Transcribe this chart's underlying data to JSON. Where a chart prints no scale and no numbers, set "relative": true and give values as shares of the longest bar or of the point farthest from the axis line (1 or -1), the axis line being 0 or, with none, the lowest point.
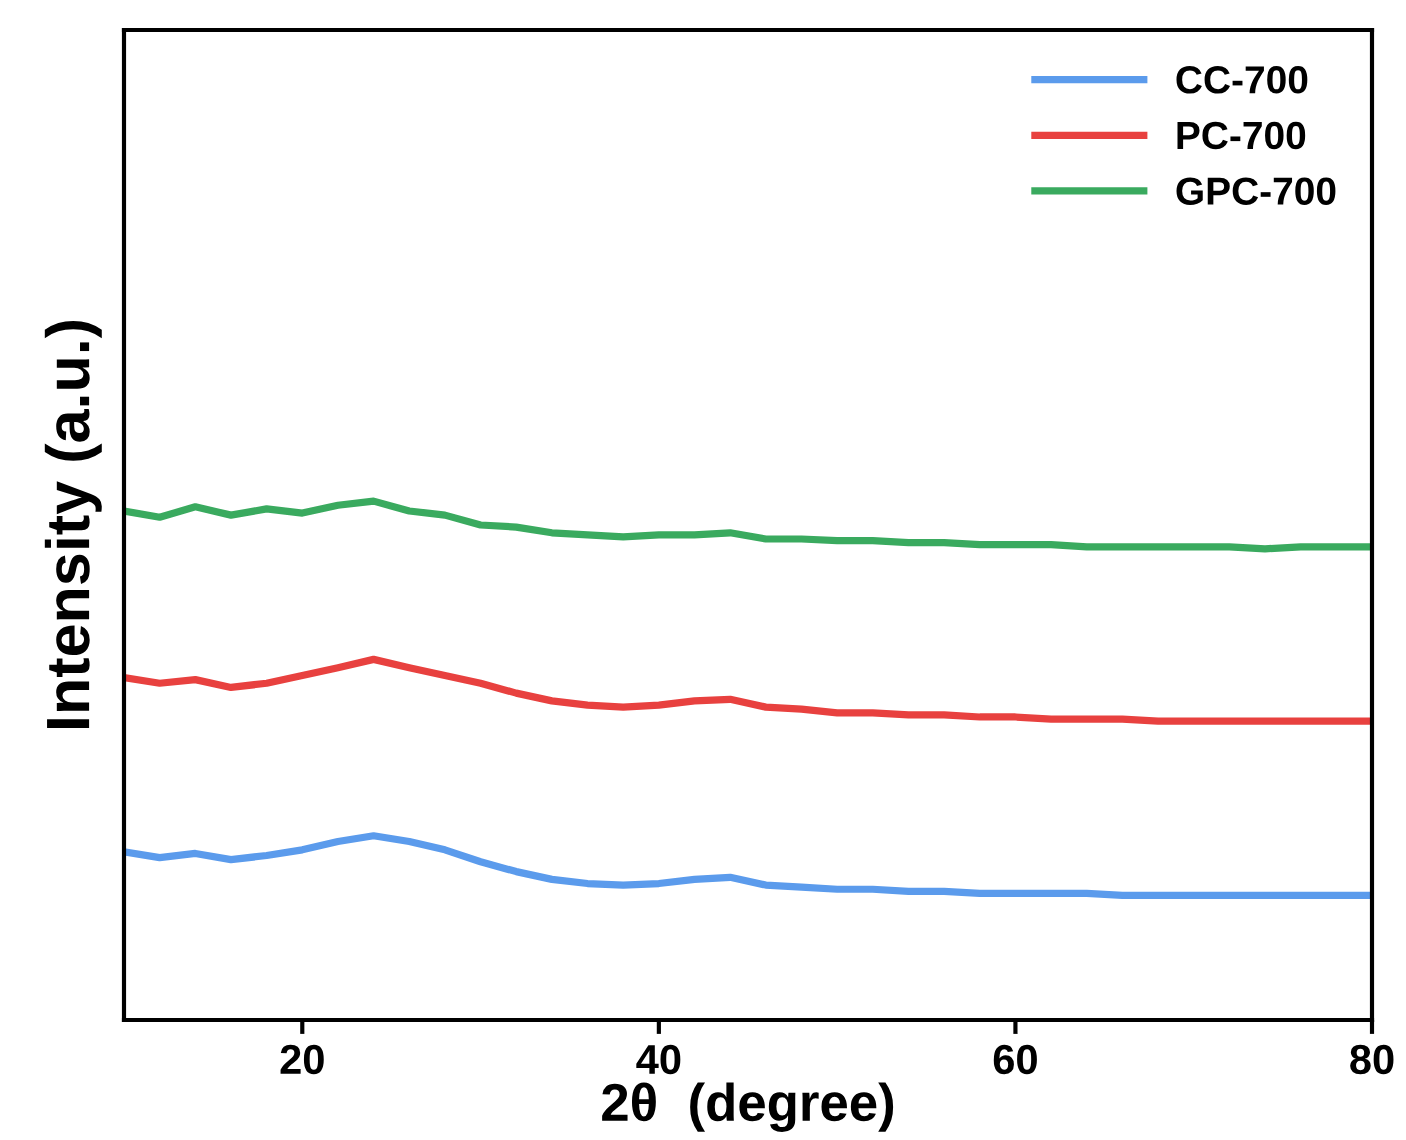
{
  "chart_data": {
    "type": "line",
    "relative": true,
    "xlabel": "2θ  (degree)",
    "ylabel": "Intensity (a.u.)",
    "xlim": [
      10,
      80
    ],
    "xticks": [
      20,
      40,
      60,
      80
    ],
    "tick_labels": "x",
    "legend": "top right",
    "grid": false,
    "marker": "none",
    "line_style": "solid",
    "x": [
      10,
      12,
      14,
      16,
      18,
      20,
      22,
      24,
      26,
      28,
      30,
      32,
      34,
      36,
      38,
      40,
      42,
      44,
      46,
      48,
      50,
      52,
      54,
      56,
      58,
      60,
      62,
      64,
      66,
      68,
      70,
      72,
      74,
      76,
      78,
      80
    ],
    "series": [
      {
        "name": "CC-700",
        "color": "#5b9bec",
        "values": [
          0.324,
          0.313,
          0.321,
          0.309,
          0.317,
          0.328,
          0.344,
          0.355,
          0.344,
          0.328,
          0.305,
          0.286,
          0.271,
          0.263,
          0.26,
          0.263,
          0.271,
          0.275,
          0.26,
          0.256,
          0.252,
          0.252,
          0.248,
          0.248,
          0.244,
          0.244,
          0.244,
          0.244,
          0.24,
          0.24,
          0.24,
          0.24,
          0.24,
          0.24,
          0.24,
          0.24
        ]
      },
      {
        "name": "PC-700",
        "color": "#e8413f",
        "values": [
          0.66,
          0.649,
          0.656,
          0.641,
          0.649,
          0.664,
          0.679,
          0.695,
          0.679,
          0.664,
          0.649,
          0.63,
          0.615,
          0.607,
          0.603,
          0.607,
          0.615,
          0.618,
          0.603,
          0.599,
          0.592,
          0.592,
          0.588,
          0.588,
          0.584,
          0.584,
          0.58,
          0.58,
          0.58,
          0.576,
          0.576,
          0.576,
          0.576,
          0.576,
          0.576,
          0.576
        ]
      },
      {
        "name": "GPC-700",
        "color": "#3aaa5f",
        "values": [
          0.981,
          0.969,
          0.989,
          0.973,
          0.985,
          0.977,
          0.992,
          1,
          0.981,
          0.973,
          0.954,
          0.95,
          0.939,
          0.935,
          0.931,
          0.935,
          0.935,
          0.939,
          0.927,
          0.927,
          0.924,
          0.924,
          0.92,
          0.92,
          0.916,
          0.916,
          0.916,
          0.912,
          0.912,
          0.912,
          0.912,
          0.912,
          0.908,
          0.912,
          0.912,
          0.912
        ]
      }
    ]
  }
}
